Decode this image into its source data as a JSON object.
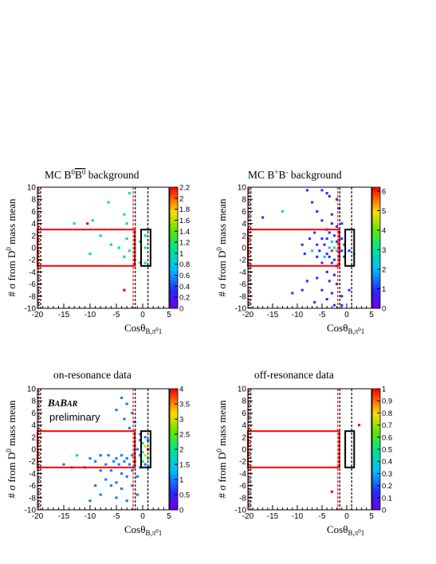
{
  "chart_data": [
    {
      "type": "heatmap",
      "title": "MC B0B0bar background",
      "xlabel": "Cosθ_B,π⁰1",
      "ylabel": "# σ from D0 mass mean",
      "xlim": [
        -20,
        5
      ],
      "ylim": [
        -10,
        10
      ],
      "xticks": [
        -20,
        -15,
        -10,
        -5,
        0,
        5
      ],
      "yticks": [
        -10,
        -8,
        -6,
        -4,
        -2,
        0,
        2,
        4,
        6,
        8,
        10
      ],
      "colorbar": {
        "range": [
          0,
          2.2
        ],
        "ticks": [
          "0",
          "0.2",
          "0.4",
          "0.6",
          "0.8",
          "1",
          "1.2",
          "1.4",
          "1.6",
          "1.8",
          "2",
          "2.2"
        ]
      },
      "points": [
        {
          "x": -13,
          "y": 4,
          "v": 1.1
        },
        {
          "x": -10.5,
          "y": 4,
          "v": 2.2
        },
        {
          "x": -9.5,
          "y": 4.5,
          "v": 1.1
        },
        {
          "x": -6.5,
          "y": 7.5,
          "v": 1.1
        },
        {
          "x": -2.5,
          "y": 9,
          "v": 1.1
        },
        {
          "x": -3.5,
          "y": 5.5,
          "v": 1.1
        },
        {
          "x": -3,
          "y": 4,
          "v": 1.1
        },
        {
          "x": -8,
          "y": 2,
          "v": 1.1
        },
        {
          "x": -6,
          "y": 0.5,
          "v": 1.1
        },
        {
          "x": -4.5,
          "y": 0,
          "v": 1.1
        },
        {
          "x": -2.5,
          "y": -0.5,
          "v": 1.1
        },
        {
          "x": -10,
          "y": -1,
          "v": 1.1
        },
        {
          "x": -3.5,
          "y": -1.5,
          "v": 1.1
        },
        {
          "x": -1.5,
          "y": -2,
          "v": 1.1
        },
        {
          "x": -0.5,
          "y": -2.5,
          "v": 1.1
        },
        {
          "x": 0.5,
          "y": -2.5,
          "v": 1.1
        },
        {
          "x": 0.5,
          "y": 0,
          "v": 1.1
        },
        {
          "x": 0.5,
          "y": 2,
          "v": 1.1
        },
        {
          "x": -0.5,
          "y": 1,
          "v": 1.1
        },
        {
          "x": -3.5,
          "y": -7,
          "v": 2.2
        },
        {
          "x": -3,
          "y": 1.5,
          "v": 1.1
        }
      ]
    },
    {
      "type": "heatmap",
      "title": "MC B+B- background",
      "xlabel": "Cosθ_B,π⁰1",
      "ylabel": "# σ from D0 mass mean",
      "xlim": [
        -20,
        5
      ],
      "ylim": [
        -10,
        10
      ],
      "xticks": [
        -20,
        -15,
        -10,
        -5,
        0,
        5
      ],
      "yticks": [
        -10,
        -8,
        -6,
        -4,
        -2,
        0,
        2,
        4,
        6,
        8,
        10
      ],
      "colorbar": {
        "range": [
          0,
          6.2
        ],
        "ticks": [
          "0",
          "1",
          "2",
          "3",
          "4",
          "5",
          "6"
        ]
      },
      "points": [
        {
          "x": -8,
          "y": 9.5,
          "v": 1
        },
        {
          "x": -5,
          "y": 9.5,
          "v": 1
        },
        {
          "x": -4,
          "y": 9,
          "v": 1
        },
        {
          "x": -3.5,
          "y": 8.5,
          "v": 1
        },
        {
          "x": -7,
          "y": 7.5,
          "v": 1
        },
        {
          "x": -2,
          "y": 8,
          "v": 1
        },
        {
          "x": -13,
          "y": 6,
          "v": 2.5
        },
        {
          "x": -17,
          "y": 5,
          "v": 1
        },
        {
          "x": -6,
          "y": 6,
          "v": 1
        },
        {
          "x": -3,
          "y": 5.5,
          "v": 1
        },
        {
          "x": -1.5,
          "y": 6.5,
          "v": 1
        },
        {
          "x": -5,
          "y": 4.5,
          "v": 1
        },
        {
          "x": -3,
          "y": 4,
          "v": 1
        },
        {
          "x": -1,
          "y": 4,
          "v": 1
        },
        {
          "x": -2,
          "y": 3.5,
          "v": 1
        },
        {
          "x": -4,
          "y": 3,
          "v": 1
        },
        {
          "x": -6.5,
          "y": 2.5,
          "v": 1
        },
        {
          "x": -3.5,
          "y": 2.5,
          "v": 1
        },
        {
          "x": -2.5,
          "y": 2,
          "v": 1
        },
        {
          "x": -1.5,
          "y": 2.5,
          "v": 1
        },
        {
          "x": -7.5,
          "y": 1.5,
          "v": 1
        },
        {
          "x": -5,
          "y": 1.5,
          "v": 1
        },
        {
          "x": -4,
          "y": 1.5,
          "v": 1
        },
        {
          "x": -3,
          "y": 1,
          "v": 2
        },
        {
          "x": -2,
          "y": 1,
          "v": 1
        },
        {
          "x": -1,
          "y": 1.5,
          "v": 1
        },
        {
          "x": -9,
          "y": 0.5,
          "v": 1
        },
        {
          "x": -6,
          "y": 0.5,
          "v": 1
        },
        {
          "x": -4.5,
          "y": 0.5,
          "v": 1
        },
        {
          "x": -3.5,
          "y": 0,
          "v": 2
        },
        {
          "x": -2.5,
          "y": 0,
          "v": 3
        },
        {
          "x": -1.5,
          "y": 0,
          "v": 1
        },
        {
          "x": -0.5,
          "y": 0.5,
          "v": 1
        },
        {
          "x": -7,
          "y": -0.5,
          "v": 2
        },
        {
          "x": -5.5,
          "y": -0.5,
          "v": 1
        },
        {
          "x": -4,
          "y": -1,
          "v": 1
        },
        {
          "x": -3,
          "y": -0.5,
          "v": 6
        },
        {
          "x": -2,
          "y": -0.5,
          "v": 2
        },
        {
          "x": -1,
          "y": -0.5,
          "v": 1
        },
        {
          "x": -8.5,
          "y": -1,
          "v": 1
        },
        {
          "x": -6,
          "y": -1.5,
          "v": 1
        },
        {
          "x": -4.5,
          "y": -1.5,
          "v": 2
        },
        {
          "x": -3.5,
          "y": -1.5,
          "v": 1
        },
        {
          "x": -2.5,
          "y": -2,
          "v": 1
        },
        {
          "x": -1.5,
          "y": -1.5,
          "v": 1
        },
        {
          "x": -0.5,
          "y": -1.5,
          "v": 1
        },
        {
          "x": -5,
          "y": -2.5,
          "v": 1
        },
        {
          "x": -3,
          "y": -2.5,
          "v": 1
        },
        {
          "x": -2,
          "y": -3,
          "v": 1
        },
        {
          "x": 1.5,
          "y": -1,
          "v": 3
        },
        {
          "x": 0.5,
          "y": -0.5,
          "v": 1
        },
        {
          "x": -4,
          "y": -4,
          "v": 1
        },
        {
          "x": -2.5,
          "y": -4.5,
          "v": 1
        },
        {
          "x": -6,
          "y": -5,
          "v": 1
        },
        {
          "x": -3.5,
          "y": -5.5,
          "v": 1
        },
        {
          "x": -2,
          "y": -6,
          "v": 1
        },
        {
          "x": -8,
          "y": -5.5,
          "v": 1
        },
        {
          "x": -9,
          "y": -7,
          "v": 1
        },
        {
          "x": -5,
          "y": -7,
          "v": 1
        },
        {
          "x": -3,
          "y": -7.5,
          "v": 1
        },
        {
          "x": -4,
          "y": -8.5,
          "v": 1
        },
        {
          "x": -2.5,
          "y": -9.5,
          "v": 1
        },
        {
          "x": -1,
          "y": -8,
          "v": 1
        },
        {
          "x": 0.5,
          "y": -7,
          "v": 1
        },
        {
          "x": -6.5,
          "y": -9,
          "v": 1
        },
        {
          "x": -11,
          "y": -7.5,
          "v": 1
        },
        {
          "x": -1,
          "y": -9.5,
          "v": 1
        }
      ]
    },
    {
      "type": "heatmap",
      "title": "on-resonance data",
      "xlabel": "Cosθ_B,π⁰1",
      "ylabel": "# σ from D0 mass mean",
      "xlim": [
        -20,
        5
      ],
      "ylim": [
        -10,
        10
      ],
      "xticks": [
        -20,
        -15,
        -10,
        -5,
        0,
        5
      ],
      "yticks": [
        -10,
        -8,
        -6,
        -4,
        -2,
        0,
        2,
        4,
        6,
        8,
        10
      ],
      "colorbar": {
        "range": [
          0,
          4
        ],
        "ticks": [
          "0",
          "0.5",
          "1",
          "1.5",
          "2",
          "2.5",
          "3",
          "3.5",
          "4"
        ]
      },
      "points": [
        {
          "x": -4,
          "y": 8.5,
          "v": 1
        },
        {
          "x": -3,
          "y": 7.5,
          "v": 1
        },
        {
          "x": -5,
          "y": 6.5,
          "v": 1
        },
        {
          "x": -2,
          "y": 6,
          "v": 1
        },
        {
          "x": -3.5,
          "y": 5,
          "v": 1
        },
        {
          "x": -1.5,
          "y": 4.5,
          "v": 1
        },
        {
          "x": -2.5,
          "y": 3.5,
          "v": 1
        },
        {
          "x": -12.5,
          "y": -1,
          "v": 2
        },
        {
          "x": -10,
          "y": -1.5,
          "v": 1
        },
        {
          "x": -8,
          "y": -1,
          "v": 1
        },
        {
          "x": -6.5,
          "y": -1,
          "v": 1
        },
        {
          "x": -5,
          "y": -1.5,
          "v": 1
        },
        {
          "x": -4,
          "y": -1,
          "v": 1
        },
        {
          "x": -3,
          "y": -1.5,
          "v": 1
        },
        {
          "x": -2,
          "y": -1,
          "v": 1
        },
        {
          "x": -9,
          "y": -2,
          "v": 1
        },
        {
          "x": -7,
          "y": -2.5,
          "v": 1
        },
        {
          "x": -5.5,
          "y": -2,
          "v": 1
        },
        {
          "x": -4.5,
          "y": -2.5,
          "v": 1
        },
        {
          "x": -3.5,
          "y": -2,
          "v": 1
        },
        {
          "x": -2.5,
          "y": -2.5,
          "v": 1
        },
        {
          "x": -1.5,
          "y": -2,
          "v": 1
        },
        {
          "x": -11,
          "y": -3,
          "v": 1
        },
        {
          "x": -13.5,
          "y": -3,
          "v": 1
        },
        {
          "x": -15,
          "y": -2.5,
          "v": 1
        },
        {
          "x": -8,
          "y": -3.5,
          "v": 1
        },
        {
          "x": -6,
          "y": -3.5,
          "v": 1
        },
        {
          "x": -4,
          "y": -4,
          "v": 1
        },
        {
          "x": -2,
          "y": -3.5,
          "v": 1
        },
        {
          "x": -3,
          "y": -4.5,
          "v": 1
        },
        {
          "x": -7,
          "y": -5,
          "v": 1
        },
        {
          "x": -5,
          "y": -5.5,
          "v": 1
        },
        {
          "x": -9,
          "y": -6,
          "v": 1
        },
        {
          "x": -6,
          "y": -6,
          "v": 1
        },
        {
          "x": -4,
          "y": -6.5,
          "v": 1
        },
        {
          "x": -2,
          "y": -6,
          "v": 1
        },
        {
          "x": -8,
          "y": -7.5,
          "v": 1
        },
        {
          "x": -5,
          "y": -8,
          "v": 1
        },
        {
          "x": -10,
          "y": -8.5,
          "v": 1
        },
        {
          "x": -3,
          "y": -8.5,
          "v": 1
        },
        {
          "x": -1,
          "y": -7.5,
          "v": 1
        },
        {
          "x": -1,
          "y": -4.5,
          "v": 1
        },
        {
          "x": -0.5,
          "y": 1.5,
          "v": 1
        },
        {
          "x": 0,
          "y": 1,
          "v": 2
        },
        {
          "x": 0.5,
          "y": 0.5,
          "v": 3
        },
        {
          "x": 1,
          "y": 0,
          "v": 4
        },
        {
          "x": 0,
          "y": -0.5,
          "v": 2
        },
        {
          "x": 0.5,
          "y": -1,
          "v": 3
        },
        {
          "x": 1,
          "y": -1.5,
          "v": 2
        },
        {
          "x": -0.5,
          "y": -1,
          "v": 1
        },
        {
          "x": 0,
          "y": -2,
          "v": 2
        },
        {
          "x": 0.5,
          "y": -2.5,
          "v": 1
        },
        {
          "x": 1,
          "y": 1.5,
          "v": 1
        },
        {
          "x": -0.5,
          "y": 2.5,
          "v": 1
        },
        {
          "x": 0.5,
          "y": 2,
          "v": 1
        },
        {
          "x": -0.5,
          "y": -3,
          "v": 1
        },
        {
          "x": 1,
          "y": -3,
          "v": 1
        },
        {
          "x": -1,
          "y": 0,
          "v": 1
        }
      ]
    },
    {
      "type": "heatmap",
      "title": "off-resonance data",
      "xlabel": "Cosθ_B,π⁰1",
      "ylabel": "# σ from D0 mass mean",
      "xlim": [
        -20,
        5
      ],
      "ylim": [
        -10,
        10
      ],
      "xticks": [
        -20,
        -15,
        -10,
        -5,
        0,
        5
      ],
      "yticks": [
        -10,
        -8,
        -6,
        -4,
        -2,
        0,
        2,
        4,
        6,
        8,
        10
      ],
      "colorbar": {
        "range": [
          0,
          1
        ],
        "ticks": [
          "0",
          "0.1",
          "0.2",
          "0.3",
          "0.4",
          "0.5",
          "0.6",
          "0.7",
          "0.8",
          "0.9",
          "1"
        ]
      },
      "points": [
        {
          "x": -3,
          "y": -7,
          "v": 1
        },
        {
          "x": 2.5,
          "y": 4,
          "v": 1
        }
      ]
    }
  ],
  "watermark": {
    "brand": "BaBar",
    "note": "preliminary"
  },
  "colors": {
    "signal_box": "#ff0000",
    "sideband_box": "#000000",
    "cut_red": "#ff0000",
    "cut_black": "#000000"
  }
}
